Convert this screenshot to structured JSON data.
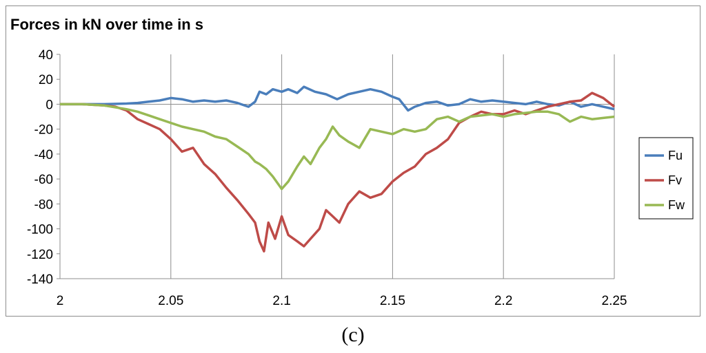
{
  "caption": "(c)",
  "chart_data": {
    "type": "line",
    "title": "Forces in kN over time in s",
    "xlabel": "",
    "ylabel": "",
    "xlim": [
      2,
      2.25
    ],
    "ylim": [
      -140,
      40
    ],
    "x_ticks": [
      "2",
      "2.05",
      "2.1",
      "2.15",
      "2.2",
      "2.25"
    ],
    "x_tick_values": [
      2,
      2.05,
      2.1,
      2.15,
      2.2,
      2.25
    ],
    "y_ticks": [
      "40",
      "20",
      "0",
      "-20",
      "-40",
      "-60",
      "-80",
      "-100",
      "-120",
      "-140"
    ],
    "y_tick_values": [
      40,
      20,
      0,
      -20,
      -40,
      -60,
      -80,
      -100,
      -120,
      -140
    ],
    "grid": "vertical",
    "legend_position": "right",
    "series": [
      {
        "name": "Fu",
        "color": "#4a7ebb",
        "points": [
          [
            2.0,
            0
          ],
          [
            2.01,
            0
          ],
          [
            2.02,
            0
          ],
          [
            2.03,
            0.5
          ],
          [
            2.035,
            1
          ],
          [
            2.04,
            2
          ],
          [
            2.045,
            3
          ],
          [
            2.05,
            5
          ],
          [
            2.055,
            4
          ],
          [
            2.06,
            2
          ],
          [
            2.065,
            3
          ],
          [
            2.07,
            2
          ],
          [
            2.075,
            3
          ],
          [
            2.08,
            1
          ],
          [
            2.085,
            -2
          ],
          [
            2.088,
            2
          ],
          [
            2.09,
            10
          ],
          [
            2.093,
            8
          ],
          [
            2.096,
            12
          ],
          [
            2.1,
            10
          ],
          [
            2.103,
            12
          ],
          [
            2.107,
            9
          ],
          [
            2.11,
            14
          ],
          [
            2.115,
            10
          ],
          [
            2.12,
            8
          ],
          [
            2.125,
            4
          ],
          [
            2.13,
            8
          ],
          [
            2.135,
            10
          ],
          [
            2.14,
            12
          ],
          [
            2.145,
            10
          ],
          [
            2.15,
            6
          ],
          [
            2.153,
            4
          ],
          [
            2.157,
            -5
          ],
          [
            2.16,
            -2
          ],
          [
            2.165,
            1
          ],
          [
            2.17,
            2
          ],
          [
            2.175,
            -1
          ],
          [
            2.18,
            0
          ],
          [
            2.185,
            4
          ],
          [
            2.19,
            2
          ],
          [
            2.195,
            3
          ],
          [
            2.2,
            2
          ],
          [
            2.205,
            1
          ],
          [
            2.21,
            0
          ],
          [
            2.215,
            2
          ],
          [
            2.22,
            0
          ],
          [
            2.225,
            -1
          ],
          [
            2.23,
            2
          ],
          [
            2.235,
            -2
          ],
          [
            2.24,
            0
          ],
          [
            2.245,
            -2
          ],
          [
            2.25,
            -4
          ]
        ]
      },
      {
        "name": "Fv",
        "color": "#be4b48",
        "points": [
          [
            2.0,
            0
          ],
          [
            2.01,
            0
          ],
          [
            2.02,
            -1
          ],
          [
            2.025,
            -2
          ],
          [
            2.03,
            -5
          ],
          [
            2.035,
            -12
          ],
          [
            2.04,
            -16
          ],
          [
            2.045,
            -20
          ],
          [
            2.05,
            -28
          ],
          [
            2.055,
            -38
          ],
          [
            2.06,
            -35
          ],
          [
            2.065,
            -48
          ],
          [
            2.07,
            -56
          ],
          [
            2.075,
            -67
          ],
          [
            2.08,
            -77
          ],
          [
            2.085,
            -88
          ],
          [
            2.088,
            -95
          ],
          [
            2.09,
            -110
          ],
          [
            2.092,
            -118
          ],
          [
            2.094,
            -95
          ],
          [
            2.097,
            -108
          ],
          [
            2.1,
            -90
          ],
          [
            2.103,
            -105
          ],
          [
            2.107,
            -110
          ],
          [
            2.11,
            -114
          ],
          [
            2.113,
            -108
          ],
          [
            2.117,
            -100
          ],
          [
            2.12,
            -85
          ],
          [
            2.123,
            -90
          ],
          [
            2.126,
            -95
          ],
          [
            2.13,
            -80
          ],
          [
            2.135,
            -70
          ],
          [
            2.14,
            -75
          ],
          [
            2.145,
            -72
          ],
          [
            2.15,
            -62
          ],
          [
            2.155,
            -55
          ],
          [
            2.16,
            -50
          ],
          [
            2.165,
            -40
          ],
          [
            2.17,
            -35
          ],
          [
            2.175,
            -28
          ],
          [
            2.18,
            -15
          ],
          [
            2.185,
            -10
          ],
          [
            2.19,
            -6
          ],
          [
            2.195,
            -8
          ],
          [
            2.2,
            -8
          ],
          [
            2.205,
            -5
          ],
          [
            2.21,
            -8
          ],
          [
            2.215,
            -5
          ],
          [
            2.22,
            -2
          ],
          [
            2.225,
            0
          ],
          [
            2.23,
            2
          ],
          [
            2.235,
            3
          ],
          [
            2.24,
            9
          ],
          [
            2.245,
            5
          ],
          [
            2.25,
            -2
          ]
        ]
      },
      {
        "name": "Fw",
        "color": "#98b954",
        "points": [
          [
            2.0,
            0
          ],
          [
            2.01,
            0
          ],
          [
            2.02,
            -1
          ],
          [
            2.03,
            -4
          ],
          [
            2.035,
            -6
          ],
          [
            2.04,
            -9
          ],
          [
            2.045,
            -12
          ],
          [
            2.05,
            -15
          ],
          [
            2.055,
            -18
          ],
          [
            2.06,
            -20
          ],
          [
            2.065,
            -22
          ],
          [
            2.07,
            -26
          ],
          [
            2.075,
            -28
          ],
          [
            2.08,
            -34
          ],
          [
            2.085,
            -40
          ],
          [
            2.088,
            -46
          ],
          [
            2.09,
            -48
          ],
          [
            2.093,
            -52
          ],
          [
            2.096,
            -58
          ],
          [
            2.1,
            -68
          ],
          [
            2.103,
            -62
          ],
          [
            2.107,
            -50
          ],
          [
            2.11,
            -42
          ],
          [
            2.113,
            -48
          ],
          [
            2.117,
            -35
          ],
          [
            2.12,
            -28
          ],
          [
            2.123,
            -18
          ],
          [
            2.126,
            -25
          ],
          [
            2.13,
            -30
          ],
          [
            2.135,
            -35
          ],
          [
            2.14,
            -20
          ],
          [
            2.145,
            -22
          ],
          [
            2.15,
            -24
          ],
          [
            2.155,
            -20
          ],
          [
            2.16,
            -22
          ],
          [
            2.165,
            -20
          ],
          [
            2.17,
            -12
          ],
          [
            2.175,
            -10
          ],
          [
            2.18,
            -14
          ],
          [
            2.185,
            -10
          ],
          [
            2.19,
            -9
          ],
          [
            2.195,
            -8
          ],
          [
            2.2,
            -10
          ],
          [
            2.205,
            -8
          ],
          [
            2.21,
            -7
          ],
          [
            2.215,
            -6
          ],
          [
            2.22,
            -6
          ],
          [
            2.225,
            -8
          ],
          [
            2.23,
            -14
          ],
          [
            2.235,
            -10
          ],
          [
            2.24,
            -12
          ],
          [
            2.245,
            -11
          ],
          [
            2.25,
            -10
          ]
        ]
      }
    ]
  }
}
